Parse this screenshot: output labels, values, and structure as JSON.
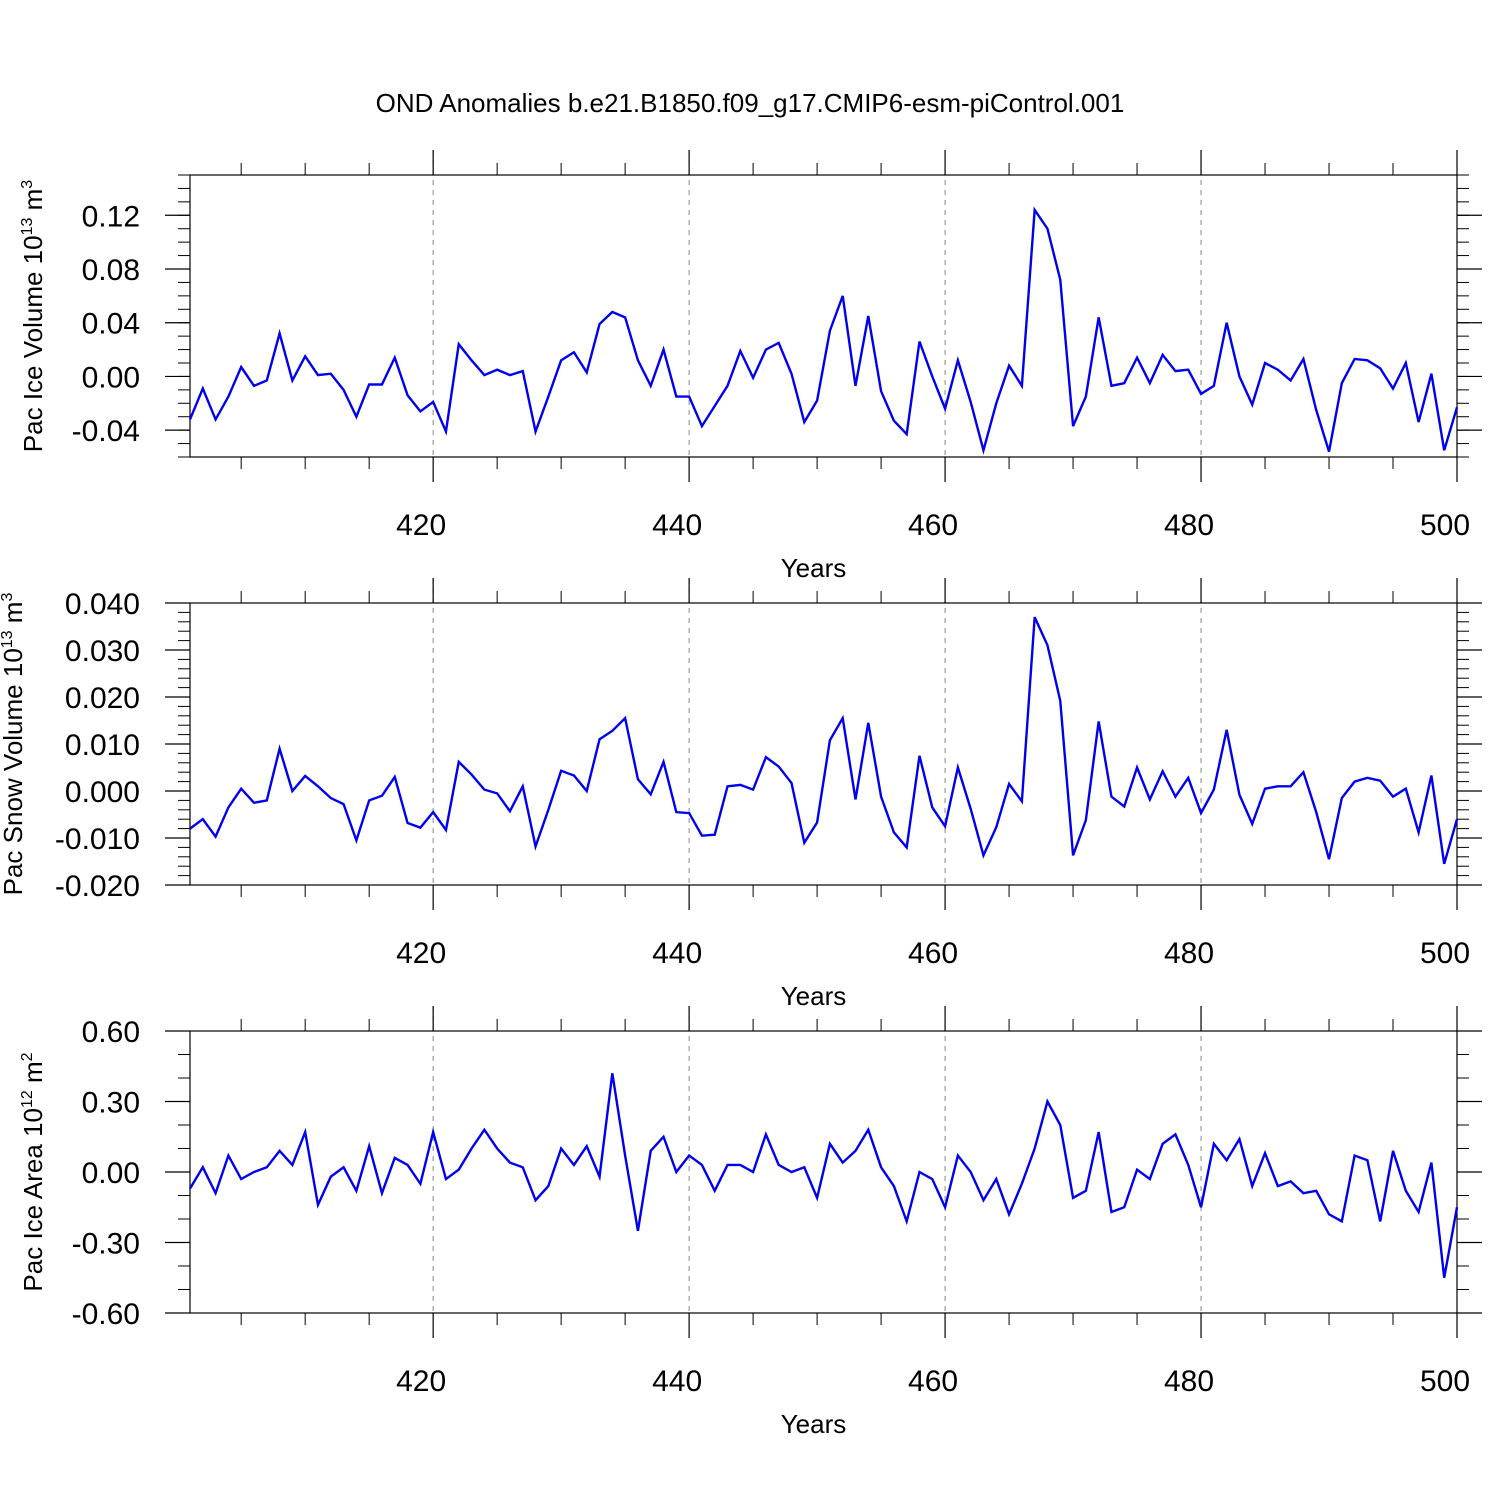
{
  "chart_data": {
    "title": "OND Anomalies b.e21.B1850.f09_g17.CMIP6-esm-piControl.001",
    "panels": [
      {
        "type": "line",
        "name": "ice-volume",
        "ylabel": {
          "main": "Pac Ice Volume 10",
          "exp": "13",
          "unit": " m",
          "unit_exp": "3"
        },
        "xlabel": "Years",
        "xlim": [
          401,
          500
        ],
        "ylim": [
          -0.06,
          0.15
        ],
        "yticks": [
          -0.04,
          0.0,
          0.04,
          0.08,
          0.12
        ],
        "yticklabels": [
          "-0.04",
          "0.00",
          "0.04",
          "0.08",
          "0.12"
        ],
        "ymidstep": 0.01,
        "xticks": [
          420,
          440,
          460,
          480,
          500
        ],
        "xticklabels": [
          "420",
          "440",
          "460",
          "480",
          "500"
        ],
        "line_color": "#0000ee",
        "x_start": 401,
        "values": [
          -0.032,
          -0.009,
          -0.032,
          -0.015,
          0.007,
          -0.007,
          -0.003,
          0.032,
          -0.003,
          0.015,
          0.001,
          0.002,
          -0.01,
          -0.03,
          -0.006,
          -0.006,
          0.014,
          -0.014,
          -0.026,
          -0.019,
          -0.041,
          0.024,
          0.012,
          0.001,
          0.005,
          0.001,
          0.004,
          -0.041,
          -0.015,
          0.012,
          0.018,
          0.003,
          0.039,
          0.048,
          0.044,
          0.012,
          -0.007,
          0.02,
          -0.015,
          -0.015,
          -0.037,
          -0.022,
          -0.007,
          0.019,
          -0.001,
          0.02,
          0.025,
          0.002,
          -0.034,
          -0.018,
          0.034,
          0.06,
          -0.007,
          0.045,
          -0.011,
          -0.033,
          -0.043,
          0.026,
          0.0,
          -0.024,
          0.012,
          -0.019,
          -0.055,
          -0.02,
          0.008,
          -0.007,
          0.124,
          0.11,
          0.072,
          -0.037,
          -0.015,
          0.044,
          -0.007,
          -0.005,
          0.014,
          -0.005,
          0.016,
          0.004,
          0.005,
          -0.013,
          -0.007,
          0.04,
          0.0,
          -0.021,
          0.01,
          0.005,
          -0.003,
          0.013,
          -0.025,
          -0.056,
          -0.005,
          0.013,
          0.012,
          0.006,
          -0.009,
          0.01,
          -0.034,
          0.002,
          -0.055,
          -0.023
        ]
      },
      {
        "type": "line",
        "name": "snow-volume",
        "ylabel": {
          "main": "Pac Snow Volume 10",
          "exp": "13",
          "unit": " m",
          "unit_exp": "3"
        },
        "xlabel": "Years",
        "xlim": [
          401,
          500
        ],
        "ylim": [
          -0.02,
          0.04
        ],
        "yticks": [
          -0.02,
          -0.01,
          0.0,
          0.01,
          0.02,
          0.03,
          0.04
        ],
        "yticklabels": [
          "-0.020",
          "-0.010",
          "0.000",
          "0.010",
          "0.020",
          "0.030",
          "0.040"
        ],
        "ymidstep": 0.002,
        "xticks": [
          420,
          440,
          460,
          480,
          500
        ],
        "xticklabels": [
          "420",
          "440",
          "460",
          "480",
          "500"
        ],
        "line_color": "#0000ee",
        "x_start": 401,
        "values": [
          -0.008,
          -0.006,
          -0.0097,
          -0.0035,
          0.0005,
          -0.0025,
          -0.002,
          0.009,
          0.0,
          0.0032,
          0.001,
          -0.0015,
          -0.0028,
          -0.0105,
          -0.002,
          -0.001,
          0.003,
          -0.0068,
          -0.0078,
          -0.0045,
          -0.0083,
          0.0062,
          0.0035,
          0.0003,
          -0.0005,
          -0.0043,
          0.001,
          -0.0118,
          -0.004,
          0.0043,
          0.0033,
          0.0,
          0.011,
          0.0128,
          0.0155,
          0.0025,
          -0.0007,
          0.0062,
          -0.0045,
          -0.0047,
          -0.0095,
          -0.0093,
          0.001,
          0.0013,
          0.0003,
          0.0072,
          0.0052,
          0.0017,
          -0.011,
          -0.0067,
          0.0108,
          0.0155,
          -0.0018,
          0.0145,
          -0.0012,
          -0.0088,
          -0.012,
          0.0075,
          -0.0035,
          -0.0075,
          0.005,
          -0.0038,
          -0.0137,
          -0.0077,
          0.0015,
          -0.0022,
          0.037,
          0.031,
          0.0192,
          -0.0137,
          -0.0062,
          0.0148,
          -0.0012,
          -0.0033,
          0.005,
          -0.0018,
          0.0042,
          -0.0012,
          0.0028,
          -0.0047,
          0.0003,
          0.013,
          -0.0008,
          -0.007,
          0.0005,
          0.001,
          0.001,
          0.004,
          -0.0045,
          -0.0145,
          -0.0015,
          0.002,
          0.0028,
          0.0022,
          -0.0012,
          0.0005,
          -0.0088,
          0.0033,
          -0.0155,
          -0.006
        ]
      },
      {
        "type": "line",
        "name": "ice-area",
        "ylabel": {
          "main": "Pac Ice Area 10",
          "exp": "12",
          "unit": " m",
          "unit_exp": "2"
        },
        "xlabel": "Years",
        "xlim": [
          401,
          500
        ],
        "ylim": [
          -0.6,
          0.6
        ],
        "yticks": [
          -0.6,
          -0.3,
          0.0,
          0.3,
          0.6
        ],
        "yticklabels": [
          "-0.60",
          "-0.30",
          "0.00",
          "0.30",
          "0.60"
        ],
        "ymidstep": 0.1,
        "xticks": [
          420,
          440,
          460,
          480,
          500
        ],
        "xticklabels": [
          "420",
          "440",
          "460",
          "480",
          "500"
        ],
        "line_color": "#0000ee",
        "x_start": 401,
        "values": [
          -0.07,
          0.02,
          -0.09,
          0.07,
          -0.03,
          0.0,
          0.02,
          0.09,
          0.03,
          0.17,
          -0.14,
          -0.02,
          0.02,
          -0.08,
          0.11,
          -0.09,
          0.06,
          0.03,
          -0.05,
          0.17,
          -0.03,
          0.01,
          0.1,
          0.18,
          0.1,
          0.04,
          0.02,
          -0.12,
          -0.06,
          0.1,
          0.03,
          0.11,
          -0.02,
          0.42,
          0.07,
          -0.25,
          0.09,
          0.15,
          0.0,
          0.07,
          0.03,
          -0.08,
          0.03,
          0.03,
          0.0,
          0.16,
          0.03,
          0.0,
          0.02,
          -0.11,
          0.12,
          0.04,
          0.09,
          0.18,
          0.02,
          -0.06,
          -0.21,
          0.0,
          -0.03,
          -0.15,
          0.07,
          0.0,
          -0.12,
          -0.03,
          -0.18,
          -0.05,
          0.1,
          0.3,
          0.2,
          -0.11,
          -0.08,
          0.17,
          -0.17,
          -0.15,
          0.01,
          -0.03,
          0.12,
          0.16,
          0.03,
          -0.15,
          0.12,
          0.05,
          0.14,
          -0.06,
          0.08,
          -0.06,
          -0.04,
          -0.09,
          -0.08,
          -0.18,
          -0.21,
          0.07,
          0.05,
          -0.21,
          0.09,
          -0.08,
          -0.17,
          0.04,
          -0.45,
          -0.15
        ]
      }
    ]
  }
}
